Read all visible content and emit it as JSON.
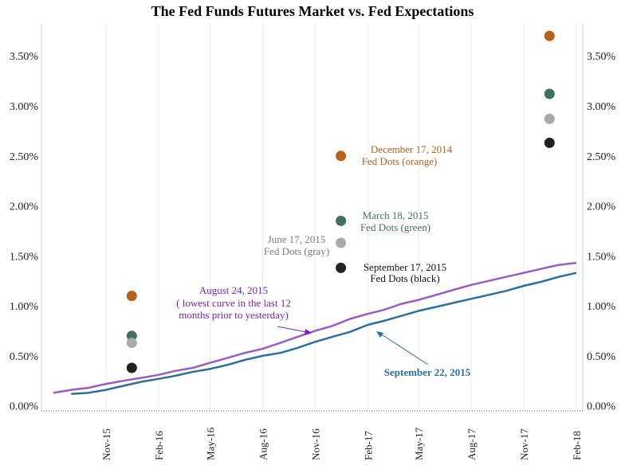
{
  "chart_data": {
    "type": "line",
    "title": "The Fed Funds Futures Market vs. Fed Expectations",
    "xlabel": "",
    "ylabel": "",
    "ylim": [
      -0.05,
      3.82
    ],
    "x_tick_labels": [
      "Nov-15",
      "Feb-16",
      "May-16",
      "Aug-16",
      "Nov-16",
      "Feb-17",
      "May-17",
      "Aug-17",
      "Nov-17",
      "Feb-18"
    ],
    "y_tick_labels": [
      {
        "v": 0.0,
        "label": "0.00%"
      },
      {
        "v": 0.5,
        "label": "0.50%"
      },
      {
        "v": 1.0,
        "label": "1.00%"
      },
      {
        "v": 1.5,
        "label": "1.50%"
      },
      {
        "v": 2.0,
        "label": "2.00%"
      },
      {
        "v": 2.5,
        "label": "2.50%"
      },
      {
        "v": 3.0,
        "label": "3.00%"
      },
      {
        "v": 3.5,
        "label": "3.50%"
      }
    ],
    "series": [
      {
        "name": "August 24, 2015",
        "color": "#9b59c9",
        "x": [
          "2015-08-01",
          "2015-09-01",
          "2015-10-01",
          "2015-11-01",
          "2015-12-01",
          "2016-01-01",
          "2016-02-01",
          "2016-03-01",
          "2016-04-01",
          "2016-05-01",
          "2016-06-01",
          "2016-07-01",
          "2016-08-01",
          "2016-09-01",
          "2016-10-01",
          "2016-11-01",
          "2016-12-01",
          "2017-01-01",
          "2017-02-01",
          "2017-03-01",
          "2017-04-01",
          "2017-05-01",
          "2017-06-01",
          "2017-07-01",
          "2017-08-01",
          "2017-09-01",
          "2017-10-01",
          "2017-11-01",
          "2017-12-01",
          "2018-01-01",
          "2018-02-01"
        ],
        "values": [
          0.13,
          0.16,
          0.18,
          0.22,
          0.25,
          0.28,
          0.31,
          0.35,
          0.38,
          0.43,
          0.48,
          0.53,
          0.57,
          0.63,
          0.69,
          0.75,
          0.8,
          0.87,
          0.92,
          0.96,
          1.02,
          1.06,
          1.11,
          1.16,
          1.21,
          1.25,
          1.29,
          1.33,
          1.37,
          1.41,
          1.43
        ]
      },
      {
        "name": "September 22, 2015",
        "color": "#2a6fa2",
        "x": [
          "2015-09-01",
          "2015-10-01",
          "2015-11-01",
          "2015-12-01",
          "2016-01-01",
          "2016-02-01",
          "2016-03-01",
          "2016-04-01",
          "2016-05-01",
          "2016-06-01",
          "2016-07-01",
          "2016-08-01",
          "2016-09-01",
          "2016-10-01",
          "2016-11-01",
          "2016-12-01",
          "2017-01-01",
          "2017-02-01",
          "2017-03-01",
          "2017-04-01",
          "2017-05-01",
          "2017-06-01",
          "2017-07-01",
          "2017-08-01",
          "2017-09-01",
          "2017-10-01",
          "2017-11-01",
          "2017-12-01",
          "2018-01-01",
          "2018-02-01"
        ],
        "values": [
          0.12,
          0.13,
          0.16,
          0.2,
          0.24,
          0.27,
          0.3,
          0.34,
          0.37,
          0.41,
          0.46,
          0.5,
          0.53,
          0.58,
          0.64,
          0.69,
          0.74,
          0.81,
          0.85,
          0.9,
          0.95,
          0.99,
          1.03,
          1.07,
          1.11,
          1.15,
          1.2,
          1.24,
          1.29,
          1.33
        ]
      }
    ],
    "dots": [
      {
        "name": "December 17, 2014 Fed Dots (orange)",
        "color": "#b5611a",
        "points": [
          {
            "x": "2015-12-16",
            "y": 1.1
          },
          {
            "x": "2016-12-16",
            "y": 2.5
          },
          {
            "x": "2017-12-16",
            "y": 3.7
          }
        ]
      },
      {
        "name": "March 18, 2015 Fed Dots (green)",
        "color": "#3f7060",
        "points": [
          {
            "x": "2015-12-16",
            "y": 0.7
          },
          {
            "x": "2016-12-16",
            "y": 1.85
          },
          {
            "x": "2017-12-16",
            "y": 3.12
          }
        ]
      },
      {
        "name": "June 17, 2015 Fed Dots (gray)",
        "color": "#a9a9a9",
        "points": [
          {
            "x": "2015-12-16",
            "y": 0.63
          },
          {
            "x": "2016-12-16",
            "y": 1.63
          },
          {
            "x": "2017-12-16",
            "y": 2.87
          }
        ]
      },
      {
        "name": "September 17, 2015 Fed Dots (black)",
        "color": "#222222",
        "points": [
          {
            "x": "2015-12-16",
            "y": 0.38
          },
          {
            "x": "2016-12-16",
            "y": 1.38
          },
          {
            "x": "2017-12-16",
            "y": 2.63
          }
        ]
      }
    ],
    "annotations": {
      "orange": {
        "l1": "December 17, 2014",
        "l2": "Fed Dots (orange)",
        "color": "#b5611a"
      },
      "green": {
        "l1": "March 18, 2015",
        "l2": "Fed Dots (green)",
        "color": "#3f7060"
      },
      "gray": {
        "l1": "June 17, 2015",
        "l2": "Fed Dots (gray)",
        "color": "#7a7a7a"
      },
      "black": {
        "l1": "September 17, 2015",
        "l2": "Fed Dots (black)",
        "color": "#111111"
      },
      "aug": {
        "l1": "August 24, 2015",
        "l2": "( lowest curve in the last 12",
        "l3": "months prior to yesterday)",
        "color": "#7b1fd1"
      },
      "sep": {
        "l1": "September 22, 2015",
        "color": "#2a6fa2"
      }
    }
  }
}
